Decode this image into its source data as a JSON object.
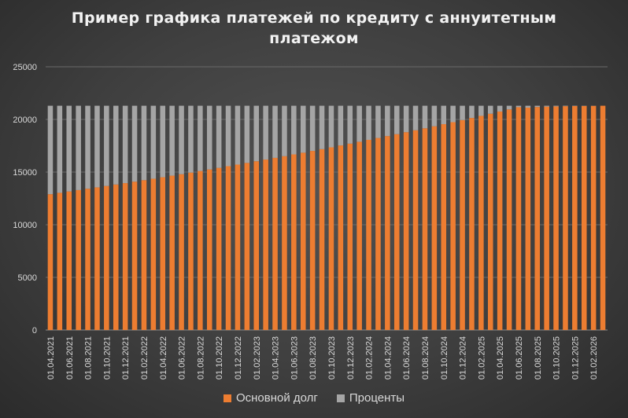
{
  "chart_data": {
    "type": "bar",
    "stacked": true,
    "title_lines": [
      "Пример графика платежей по кредиту с аннуитетным",
      "платежом"
    ],
    "ylim": [
      0,
      25000
    ],
    "yticks": [
      0,
      5000,
      10000,
      15000,
      20000,
      25000
    ],
    "grid": true,
    "legend_position": "bottom",
    "categories": [
      "01.04.2021",
      "01.05.2021",
      "01.06.2021",
      "01.07.2021",
      "01.08.2021",
      "01.09.2021",
      "01.10.2021",
      "01.11.2021",
      "01.12.2021",
      "01.01.2022",
      "01.02.2022",
      "01.03.2022",
      "01.04.2022",
      "01.05.2022",
      "01.06.2022",
      "01.07.2022",
      "01.08.2022",
      "01.09.2022",
      "01.10.2022",
      "01.11.2022",
      "01.12.2022",
      "01.01.2023",
      "01.02.2023",
      "01.03.2023",
      "01.04.2023",
      "01.05.2023",
      "01.06.2023",
      "01.07.2023",
      "01.08.2023",
      "01.09.2023",
      "01.10.2023",
      "01.11.2023",
      "01.12.2023",
      "01.01.2024",
      "01.02.2024",
      "01.03.2024",
      "01.04.2024",
      "01.05.2024",
      "01.06.2024",
      "01.07.2024",
      "01.08.2024",
      "01.09.2024",
      "01.10.2024",
      "01.11.2024",
      "01.12.2024",
      "01.01.2025",
      "01.02.2025",
      "01.03.2025",
      "01.04.2025",
      "01.05.2025",
      "01.06.2025",
      "01.07.2025",
      "01.08.2025",
      "01.09.2025",
      "01.10.2025",
      "01.11.2025",
      "01.12.2025",
      "01.01.2026",
      "01.02.2026",
      "01.03.2026"
    ],
    "xtick_labels": [
      "01.04.2021",
      "01.06.2021",
      "01.08.2021",
      "01.10.2021",
      "01.12.2021",
      "01.02.2022",
      "01.04.2022",
      "01.06.2022",
      "01.08.2022",
      "01.10.2022",
      "01.12.2022",
      "01.02.2023",
      "01.04.2023",
      "01.06.2023",
      "01.08.2023",
      "01.10.2023",
      "01.12.2023",
      "01.02.2024",
      "01.04.2024",
      "01.06.2024",
      "01.08.2024",
      "01.10.2024",
      "01.12.2024",
      "01.02.2025",
      "01.04.2025",
      "01.06.2025",
      "01.08.2025",
      "01.10.2025",
      "01.12.2025",
      "01.02.2026"
    ],
    "series": [
      {
        "name": "Основной долг",
        "color": "#ed7d31",
        "values": [
          12900,
          13030,
          13160,
          13290,
          13420,
          13550,
          13680,
          13820,
          13950,
          14090,
          14230,
          14370,
          14510,
          14660,
          14800,
          14950,
          15100,
          15250,
          15400,
          15560,
          15710,
          15870,
          16030,
          16190,
          16350,
          16510,
          16680,
          16840,
          17010,
          17180,
          17350,
          17530,
          17700,
          17880,
          18060,
          18240,
          18420,
          18600,
          18790,
          18970,
          19160,
          19350,
          19550,
          19740,
          19940,
          20140,
          20340,
          20540,
          20750,
          20950,
          21160,
          21120,
          21180,
          21220,
          21240,
          21260,
          21270,
          21280,
          21290,
          21300
        ]
      },
      {
        "name": "Проценты",
        "color": "#a5a5a5",
        "values": [
          8400,
          8270,
          8140,
          8010,
          7880,
          7750,
          7620,
          7480,
          7350,
          7210,
          7070,
          6930,
          6790,
          6640,
          6500,
          6350,
          6200,
          6050,
          5900,
          5740,
          5590,
          5430,
          5270,
          5110,
          4950,
          4790,
          4620,
          4460,
          4290,
          4120,
          3950,
          3770,
          3600,
          3420,
          3240,
          3060,
          2880,
          2700,
          2510,
          2330,
          2140,
          1950,
          1750,
          1560,
          1360,
          1160,
          960,
          760,
          550,
          350,
          140,
          180,
          120,
          80,
          60,
          40,
          30,
          20,
          10,
          0
        ]
      }
    ]
  }
}
